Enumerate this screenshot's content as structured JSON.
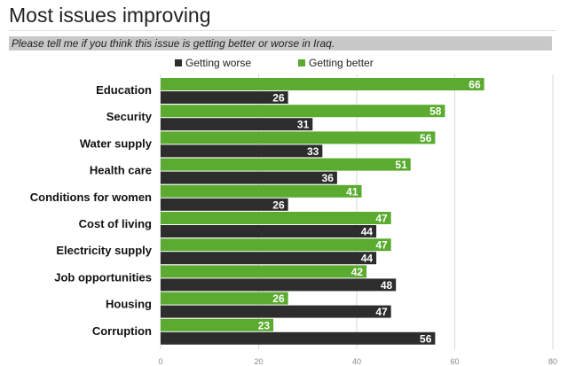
{
  "title": "Most issues improving",
  "subtitle": "Please tell me if you think this issue is getting better or worse in Iraq.",
  "colors": {
    "worse": "#2d2d2d",
    "better": "#5aab2f",
    "grid": "#d8d8d8"
  },
  "chart_data": {
    "type": "bar",
    "orientation": "horizontal",
    "categories": [
      "Education",
      "Security",
      "Water supply",
      "Health care",
      "Conditions for women",
      "Cost of living",
      "Electricity supply",
      "Job opportunities",
      "Housing",
      "Corruption"
    ],
    "series": [
      {
        "name": "Getting better",
        "values": [
          66,
          58,
          56,
          51,
          41,
          47,
          47,
          42,
          26,
          23
        ]
      },
      {
        "name": "Getting worse",
        "values": [
          26,
          31,
          33,
          36,
          26,
          44,
          44,
          48,
          47,
          56
        ]
      }
    ],
    "legend": [
      "Getting worse",
      "Getting better"
    ],
    "legend_position": "top",
    "xlim": [
      0,
      80
    ],
    "xticks": [
      0,
      20,
      40,
      60,
      80
    ],
    "grid": true
  }
}
